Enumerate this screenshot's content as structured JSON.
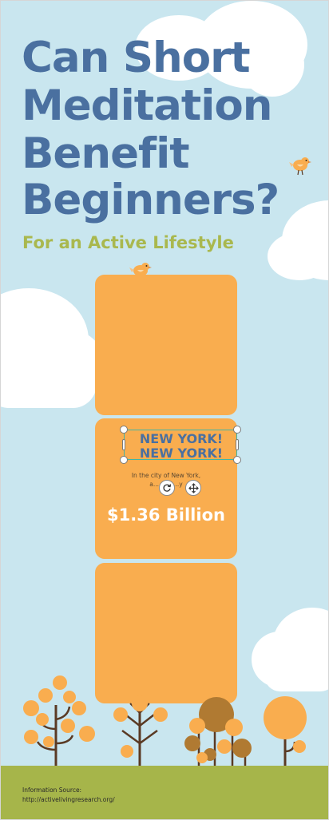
{
  "infographic": {
    "title_lines": [
      "Can Short",
      "Meditation",
      "Benefit",
      "Beginners?"
    ],
    "subtitle": "For an Active Lifestyle",
    "selected_text": {
      "line1": "NEW YORK!",
      "line2": "NEW YORK!"
    },
    "description_lines": [
      "In the city of New York,",
      "a... exin...y"
    ],
    "amount": "$1.36 Billion",
    "source_label": "Information Source:",
    "source_url": "http://activelivingresearch.org/"
  },
  "toolbar": {
    "rotate_icon": "rotate-icon",
    "move_icon": "move-icon"
  },
  "colors": {
    "sky": "#c9e6ef",
    "title": "#4a70a0",
    "subtitle": "#a9b84e",
    "card": "#f9ad4f",
    "ground": "#a6b54a",
    "tree_orange": "#f9ad4f",
    "tree_brown": "#b07a32",
    "trunk": "#5a3a24",
    "selection": "#41b5a6"
  }
}
